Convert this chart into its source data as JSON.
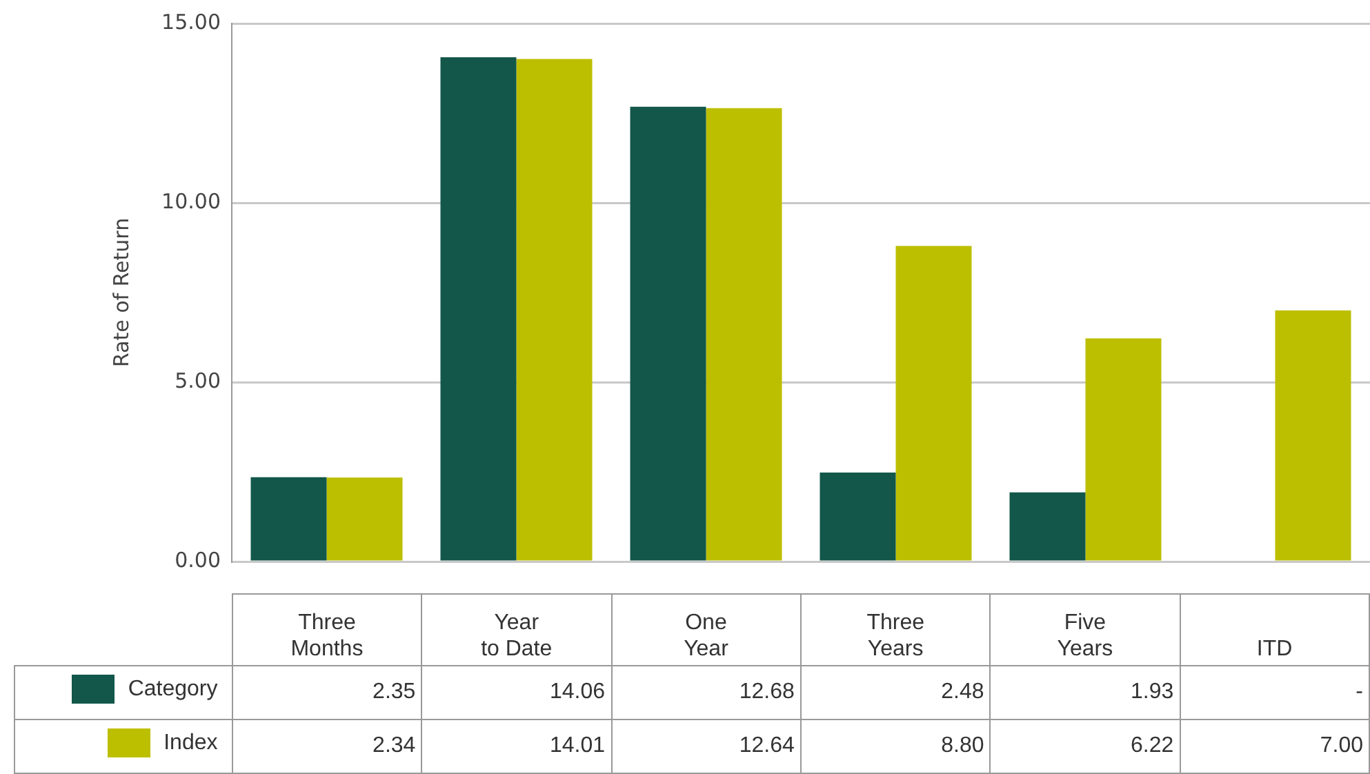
{
  "chart_data": {
    "type": "bar",
    "ylabel": "Rate of Return",
    "categories": [
      "Three\nMonths",
      "Year\nto Date",
      "One\nYear",
      "Three\nYears",
      "Five\nYears",
      "ITD"
    ],
    "series": [
      {
        "name": "Category",
        "color": "#12574a",
        "values": [
          2.35,
          14.06,
          12.68,
          2.48,
          1.93,
          null
        ],
        "value_labels": [
          "2.35",
          "14.06",
          "12.68",
          "2.48",
          "1.93",
          "-"
        ]
      },
      {
        "name": "Index",
        "color": "#bcbf00",
        "values": [
          2.34,
          14.01,
          12.64,
          8.8,
          6.22,
          7.0
        ],
        "value_labels": [
          "2.34",
          "14.01",
          "12.64",
          "8.80",
          "6.22",
          "7.00"
        ]
      }
    ],
    "ylim": [
      0,
      15
    ],
    "yticks": [
      {
        "value": 0,
        "label": "0.00"
      },
      {
        "value": 5,
        "label": "5.00"
      },
      {
        "value": 10,
        "label": "10.00"
      },
      {
        "value": 15,
        "label": "15.00"
      }
    ],
    "grid": "y",
    "legend": "bottom"
  }
}
